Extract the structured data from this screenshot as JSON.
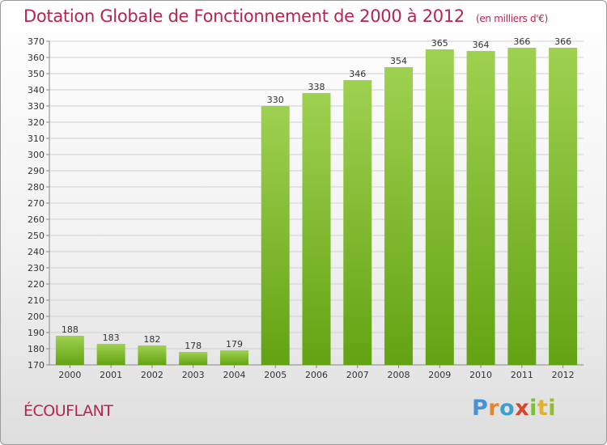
{
  "header": {
    "title": "Dotation Globale de Fonctionnement de 2000 à 2012",
    "subtitle": "(en milliers d'€)"
  },
  "footer": {
    "commune": "ÉCOUFLANT",
    "logo_text": "Proxiti"
  },
  "colors": {
    "title": "#b5264f",
    "bar_light": "#9fd150",
    "bar_dark": "#63a313",
    "grid": "#cfcfcf",
    "logo": [
      "#4a8fd6",
      "#e8842a",
      "#3aa0cf",
      "#d6452c",
      "#7cbf3a",
      "#e2b22b",
      "#8fbf2a"
    ]
  },
  "chart_data": {
    "type": "bar",
    "categories": [
      "2000",
      "2001",
      "2002",
      "2003",
      "2004",
      "2005",
      "2006",
      "2007",
      "2008",
      "2009",
      "2010",
      "2011",
      "2012"
    ],
    "values": [
      188,
      183,
      182,
      178,
      179,
      330,
      338,
      346,
      354,
      365,
      364,
      366,
      366
    ],
    "ylim": [
      170,
      370
    ],
    "yticks": [
      170,
      180,
      190,
      200,
      210,
      220,
      230,
      240,
      250,
      260,
      270,
      280,
      290,
      300,
      310,
      320,
      330,
      340,
      350,
      360,
      370
    ],
    "grid": true,
    "data_labels": true
  }
}
